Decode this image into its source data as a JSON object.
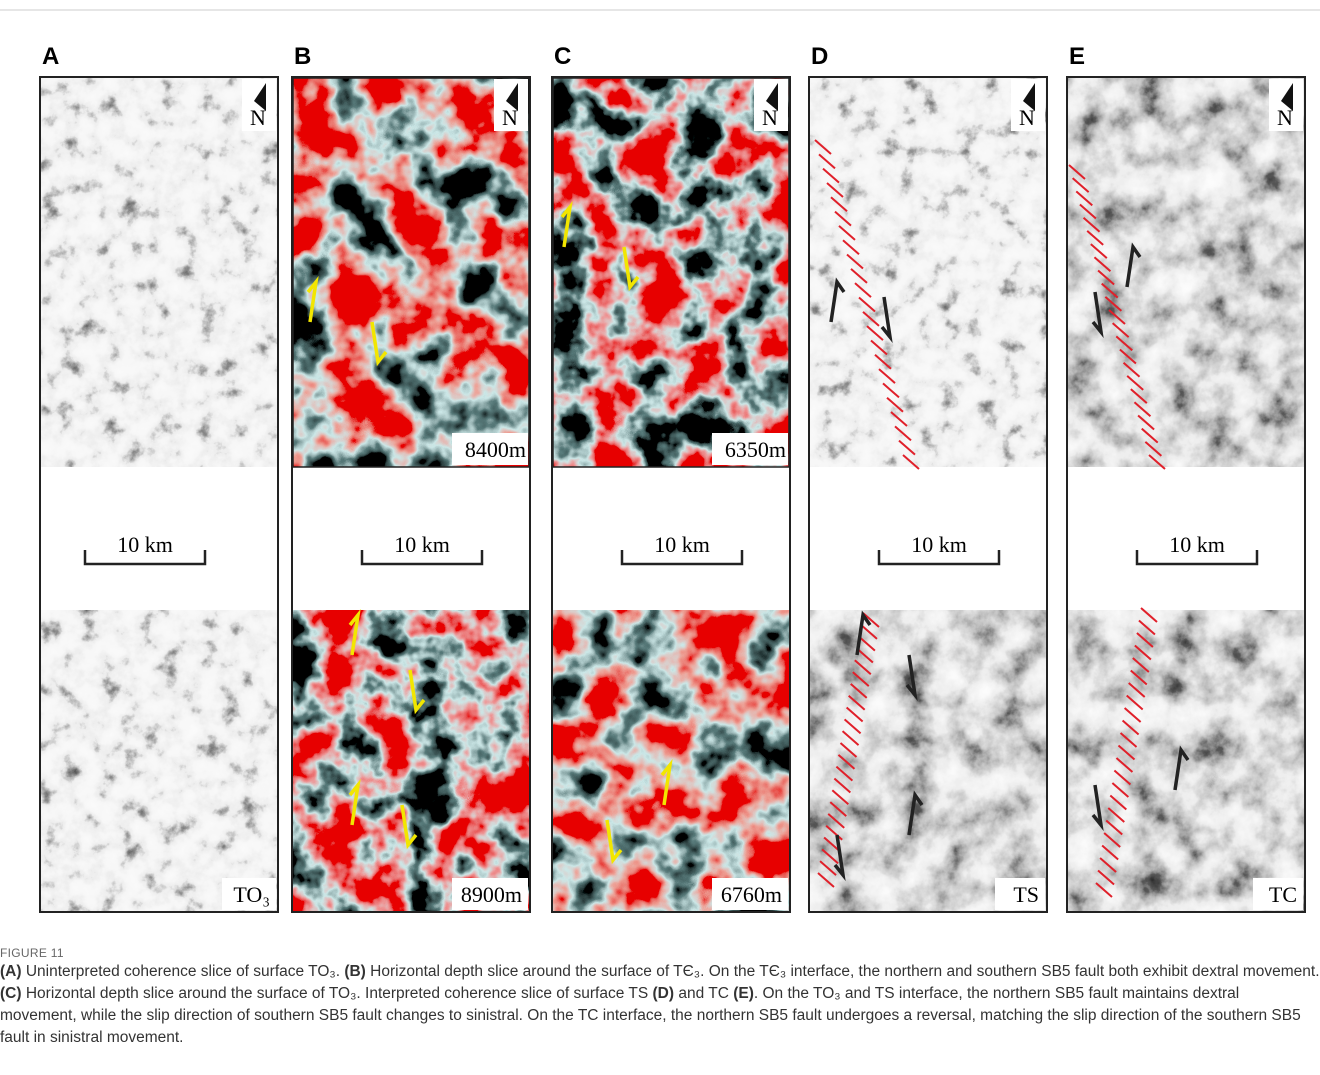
{
  "figure": {
    "panels": [
      {
        "letter": "A",
        "north": "N",
        "scale": "10 km",
        "bottom_label": "TO₃"
      },
      {
        "letter": "B",
        "north": "N",
        "top_label": "8400m",
        "scale": "10 km",
        "bottom_label": "8900m"
      },
      {
        "letter": "C",
        "north": "N",
        "top_label": "6350m",
        "scale": "10 km",
        "bottom_label": "6760m"
      },
      {
        "letter": "D",
        "north": "N",
        "scale": "10 km",
        "bottom_label": "TS"
      },
      {
        "letter": "E",
        "north": "N",
        "scale": "10 km",
        "bottom_label": "TC"
      }
    ]
  },
  "caption": {
    "label": "FIGURE 11",
    "runs": [
      "(A)",
      " Uninterpreted coherence slice of surface TO₃. ",
      "(B)",
      " Horizontal depth slice around the surface of TЄ₃. On the TЄ₃ interface, the northern and southern SB5 fault both exhibit dextral movement. ",
      "(C)",
      " Horizontal depth slice around the surface of TO₃. Interpreted coherence slice of surface TS ",
      "(D)",
      " and TC ",
      "(E)",
      ". On the TO₃ and TS interface, the northern SB5 fault maintains dextral movement, while the slip direction of southern SB5 fault changes to sinistral. On the TC interface, the northern SB5 fault undergoes a reversal, matching the slip direction of the southern SB5 fault in sinistral movement."
    ]
  }
}
